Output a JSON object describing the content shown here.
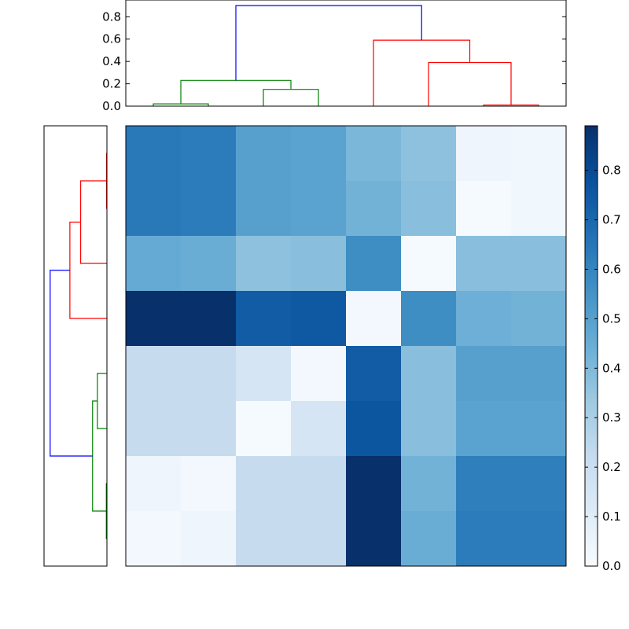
{
  "chart_data": [
    {
      "type": "dendrogram",
      "orientation": "top",
      "ylim": [
        0,
        0.95
      ],
      "yticks": [
        "0.0",
        "0.2",
        "0.4",
        "0.6",
        "0.8"
      ],
      "yticks_values": [
        0,
        0.2,
        0.4,
        0.6,
        0.8
      ],
      "merges": [
        {
          "left": 0.5,
          "right": 1.5,
          "height": 0.02,
          "color": "#008000"
        },
        {
          "left": 2.5,
          "right": 3.5,
          "height": 0.15,
          "color": "#008000"
        },
        {
          "left": 1.0,
          "right": 3.0,
          "height": 0.23,
          "color": "#008000"
        },
        {
          "left": 6.5,
          "right": 7.5,
          "height": 0.01,
          "color": "#ff0000"
        },
        {
          "left": 5.5,
          "right": 7.0,
          "height": 0.39,
          "color": "#ff0000"
        },
        {
          "left": 4.5,
          "right": 6.25,
          "height": 0.59,
          "color": "#ff0000"
        },
        {
          "left": 2.0,
          "right": 5.375,
          "height": 0.9,
          "color": "#0000ff"
        }
      ],
      "child_heights": [
        [
          0,
          0
        ],
        [
          0,
          0
        ],
        [
          0.02,
          0.15
        ],
        [
          0,
          0
        ],
        [
          0,
          0.01
        ],
        [
          0,
          0.39
        ],
        [
          0.23,
          0.59
        ]
      ]
    },
    {
      "type": "dendrogram",
      "orientation": "left",
      "merges": [
        {
          "top": 0.5,
          "bottom": 1.5,
          "height": 0.005,
          "color": "#ff0000"
        },
        {
          "top": 1.0,
          "bottom": 2.5,
          "height": 0.44,
          "color": "#ff0000"
        },
        {
          "top": 1.75,
          "bottom": 3.5,
          "height": 0.62,
          "color": "#ff0000"
        },
        {
          "top": 4.5,
          "bottom": 5.5,
          "height": 0.16,
          "color": "#008000"
        },
        {
          "top": 6.5,
          "bottom": 7.5,
          "height": 0.01,
          "color": "#008000"
        },
        {
          "top": 5.0,
          "bottom": 7.0,
          "height": 0.24,
          "color": "#008000"
        },
        {
          "top": 2.625,
          "bottom": 6.0,
          "height": 0.95,
          "color": "#0000ff"
        }
      ],
      "child_heights": [
        [
          0,
          0
        ],
        [
          0.005,
          0
        ],
        [
          0.44,
          0
        ],
        [
          0,
          0
        ],
        [
          0,
          0
        ],
        [
          0.16,
          0.01
        ],
        [
          0.62,
          0.24
        ]
      ],
      "xlim": [
        1.0,
        0
      ]
    },
    {
      "type": "heatmap",
      "rows": 8,
      "cols": 8,
      "vmin": 0,
      "vmax": 0.89,
      "colormap": "Blues",
      "values": [
        [
          0.64,
          0.63,
          0.5,
          0.49,
          0.41,
          0.37,
          0.04,
          0.03
        ],
        [
          0.64,
          0.63,
          0.5,
          0.49,
          0.43,
          0.38,
          0.01,
          0.03
        ],
        [
          0.46,
          0.45,
          0.37,
          0.38,
          0.57,
          0.01,
          0.38,
          0.38
        ],
        [
          0.89,
          0.89,
          0.74,
          0.75,
          0.02,
          0.57,
          0.44,
          0.43
        ],
        [
          0.22,
          0.22,
          0.15,
          0.02,
          0.74,
          0.38,
          0.5,
          0.5
        ],
        [
          0.22,
          0.22,
          0.01,
          0.15,
          0.76,
          0.38,
          0.49,
          0.49
        ],
        [
          0.04,
          0.02,
          0.22,
          0.22,
          0.89,
          0.43,
          0.62,
          0.62
        ],
        [
          0.02,
          0.04,
          0.22,
          0.22,
          0.89,
          0.45,
          0.63,
          0.63
        ]
      ]
    },
    {
      "type": "colorbar",
      "range": [
        0,
        0.89
      ],
      "tick_values": [
        0.0,
        0.1,
        0.2,
        0.3,
        0.4,
        0.5,
        0.6,
        0.7,
        0.8
      ],
      "tick_labels": [
        "0.0",
        "0.1",
        "0.2",
        "0.3",
        "0.4",
        "0.5",
        "0.6",
        "0.7",
        "0.8"
      ]
    }
  ]
}
